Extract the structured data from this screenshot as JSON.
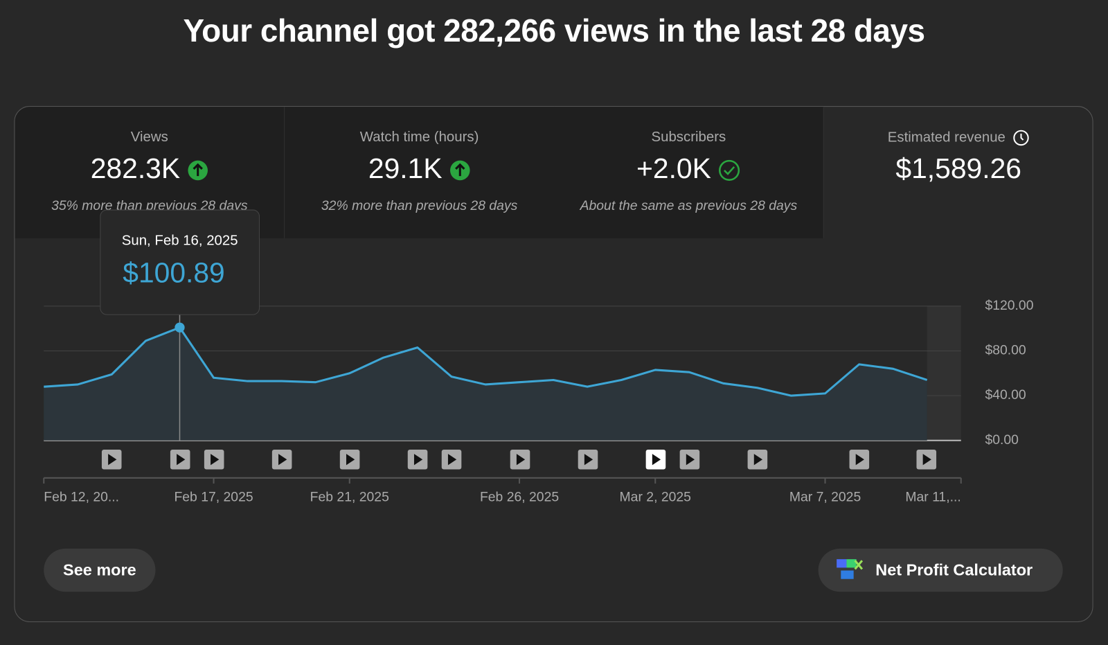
{
  "header": {
    "title": "Your channel got 282,266 views in the last 28 days"
  },
  "metrics": [
    {
      "label": "Views",
      "value": "282.3K",
      "note": "35% more than previous 28 days"
    },
    {
      "label": "Watch time (hours)",
      "value": "29.1K",
      "note": "32% more than previous 28 days"
    },
    {
      "label": "Subscribers",
      "value": "+2.0K",
      "note": "About the same as previous 28 days"
    },
    {
      "label": "Estimated revenue",
      "value": "$1,589.26"
    }
  ],
  "chart_data": {
    "type": "line",
    "x": [
      "2025-02-12",
      "2025-02-13",
      "2025-02-14",
      "2025-02-15",
      "2025-02-16",
      "2025-02-17",
      "2025-02-18",
      "2025-02-19",
      "2025-02-20",
      "2025-02-21",
      "2025-02-22",
      "2025-02-23",
      "2025-02-24",
      "2025-02-25",
      "2025-02-26",
      "2025-02-27",
      "2025-02-28",
      "2025-03-01",
      "2025-03-02",
      "2025-03-03",
      "2025-03-04",
      "2025-03-05",
      "2025-03-06",
      "2025-03-07",
      "2025-03-08",
      "2025-03-09",
      "2025-03-10"
    ],
    "values": [
      48,
      50,
      59,
      89,
      100.89,
      56,
      53,
      53,
      52,
      60,
      74,
      83,
      57,
      50,
      52,
      54,
      48,
      54,
      63,
      61,
      51,
      47,
      40,
      42,
      68,
      64,
      54
    ],
    "value_labels": [
      null,
      null,
      null,
      null,
      "$100.89",
      null,
      null,
      null,
      null,
      null,
      null,
      null,
      null,
      null,
      null,
      null,
      null,
      null,
      null,
      null,
      null,
      null,
      null,
      null,
      null,
      null,
      null
    ],
    "tooltip_date": "Sun, Feb 16, 2025",
    "color": "#3ea6d5",
    "xlim": [
      "2025-02-12",
      "2025-03-11"
    ],
    "xticks": [
      {
        "value": "2025-02-12",
        "label": "Feb 12, 20..."
      },
      {
        "value": "2025-02-17",
        "label": "Feb 17, 2025"
      },
      {
        "value": "2025-02-21",
        "label": "Feb 21, 2025"
      },
      {
        "value": "2025-02-26",
        "label": "Feb 26, 2025"
      },
      {
        "value": "2025-03-02",
        "label": "Mar 2, 2025"
      },
      {
        "value": "2025-03-07",
        "label": "Mar 7, 2025"
      },
      {
        "value": "2025-03-11",
        "label": "Mar 11,..."
      }
    ],
    "ylim": [
      0,
      120
    ],
    "yticks": [
      {
        "value": 0,
        "label": "$0.00"
      },
      {
        "value": 40,
        "label": "$40.00"
      },
      {
        "value": 80,
        "label": "$80.00"
      },
      {
        "value": 120,
        "label": "$120.00"
      }
    ],
    "grid": true
  },
  "buttons": [
    "See more",
    "Net Profit Calculator"
  ]
}
